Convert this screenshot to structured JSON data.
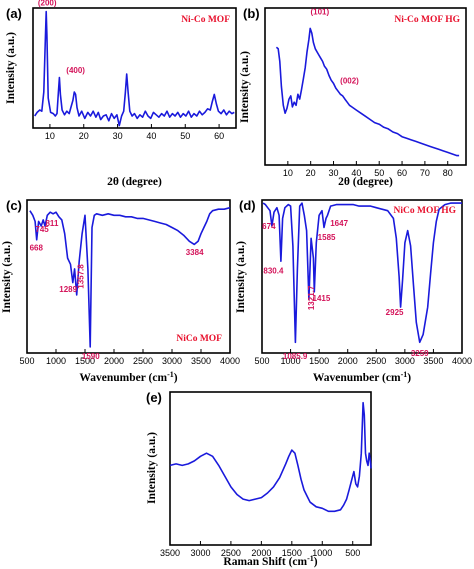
{
  "colors": {
    "line": "#1a1adc",
    "legend": "#e8112d",
    "annotation": "#d4145a"
  },
  "chart_data": [
    {
      "type": "line",
      "panel_label": "(a)",
      "legend": "Ni-Co MOF",
      "xlabel": "2θ (degree)",
      "ylabel": "Intensity (a.u.)",
      "xlim": [
        5,
        65
      ],
      "ylim": [
        0,
        1
      ],
      "xticks": [
        {
          "v": 10,
          "t": "10"
        },
        {
          "v": 20,
          "t": "20"
        },
        {
          "v": 30,
          "t": "30"
        },
        {
          "v": 40,
          "t": "40"
        },
        {
          "v": 50,
          "t": "50"
        },
        {
          "v": 60,
          "t": "60"
        }
      ],
      "series": [
        {
          "x": [
            5.5,
            6.2,
            7,
            7.6,
            8.2,
            8.6,
            8.9,
            9.1,
            9.5,
            10.2,
            11,
            11.6,
            12.1,
            12.5,
            12.8,
            13.1,
            13.6,
            14.3,
            15,
            15.7,
            16.3,
            16.8,
            17.2,
            17.6,
            18,
            18.6,
            19.4,
            20.3,
            21.2,
            22,
            22.8,
            23.6,
            24.3,
            25,
            25.8,
            26.6,
            27.4,
            28.2,
            29,
            29.8,
            30.5,
            31.2,
            31.8,
            32.3,
            32.7,
            33.1,
            33.6,
            34.3,
            35,
            35.8,
            36.6,
            37.4,
            38.2,
            39,
            39.8,
            40.6,
            41.4,
            42.2,
            43,
            43.8,
            44.6,
            45.4,
            46.2,
            47,
            47.8,
            48.6,
            49.4,
            50.2,
            51,
            51.8,
            52.6,
            53.4,
            54.2,
            55,
            55.8,
            56.6,
            57.4,
            58,
            58.6,
            59.2,
            59.8,
            60.6,
            61.4,
            62.2,
            63,
            63.8,
            64.5
          ],
          "y": [
            0.1,
            0.13,
            0.15,
            0.14,
            0.3,
            0.7,
            0.97,
            0.78,
            0.25,
            0.13,
            0.12,
            0.1,
            0.12,
            0.3,
            0.42,
            0.28,
            0.15,
            0.11,
            0.14,
            0.12,
            0.18,
            0.23,
            0.3,
            0.28,
            0.17,
            0.1,
            0.14,
            0.08,
            0.13,
            0.1,
            0.14,
            0.09,
            0.13,
            0.07,
            0.1,
            0.11,
            0.06,
            0.12,
            0.08,
            0.11,
            0.02,
            0.1,
            0.14,
            0.3,
            0.45,
            0.3,
            0.14,
            0.1,
            0.12,
            0.08,
            0.11,
            0.09,
            0.14,
            0.1,
            0.08,
            0.13,
            0.11,
            0.09,
            0.12,
            0.1,
            0.14,
            0.09,
            0.12,
            0.1,
            0.13,
            0.09,
            0.12,
            0.1,
            0.14,
            0.09,
            0.12,
            0.1,
            0.14,
            0.11,
            0.13,
            0.16,
            0.15,
            0.22,
            0.28,
            0.2,
            0.14,
            0.12,
            0.15,
            0.11,
            0.14,
            0.12,
            0.13
          ]
        }
      ],
      "annotations": [
        {
          "text": "(200)",
          "x": 9.2,
          "y": 1.02
        },
        {
          "text": "(400)",
          "x": 17.6,
          "y": 0.46
        }
      ]
    },
    {
      "type": "line",
      "panel_label": "(b)",
      "legend": "Ni-Co MOF HG",
      "xlabel": "2θ (degree)",
      "ylabel": "Intensity (a.u.)",
      "xlim": [
        0,
        88
      ],
      "ylim": [
        0,
        1
      ],
      "xticks": [
        {
          "v": 10,
          "t": "10"
        },
        {
          "v": 20,
          "t": "20"
        },
        {
          "v": 30,
          "t": "30"
        },
        {
          "v": 40,
          "t": "40"
        },
        {
          "v": 50,
          "t": "50"
        },
        {
          "v": 60,
          "t": "60"
        },
        {
          "v": 70,
          "t": "70"
        },
        {
          "v": 80,
          "t": "80"
        }
      ],
      "series": [
        {
          "x": [
            5,
            5.8,
            6.5,
            7.2,
            8,
            8.8,
            9.6,
            10.5,
            11.3,
            12,
            12.8,
            13.6,
            14.4,
            15.2,
            16,
            16.8,
            17.6,
            18.4,
            19.2,
            19.8,
            20.5,
            21.2,
            22,
            22.8,
            23.6,
            24.4,
            25.2,
            26,
            27,
            28,
            29,
            30,
            31,
            32,
            33,
            34,
            35,
            36,
            37,
            38,
            40,
            42,
            44,
            46,
            48,
            50,
            52,
            54,
            56,
            58,
            60,
            62,
            64,
            66,
            68,
            70,
            72,
            74,
            76,
            78,
            80,
            82,
            84,
            85
          ],
          "y": [
            0.75,
            0.74,
            0.66,
            0.5,
            0.38,
            0.33,
            0.36,
            0.42,
            0.44,
            0.37,
            0.4,
            0.38,
            0.45,
            0.42,
            0.48,
            0.55,
            0.62,
            0.72,
            0.8,
            0.87,
            0.84,
            0.78,
            0.74,
            0.72,
            0.7,
            0.68,
            0.66,
            0.63,
            0.61,
            0.57,
            0.54,
            0.52,
            0.49,
            0.47,
            0.45,
            0.44,
            0.42,
            0.4,
            0.38,
            0.37,
            0.35,
            0.33,
            0.31,
            0.29,
            0.27,
            0.26,
            0.24,
            0.23,
            0.21,
            0.2,
            0.18,
            0.17,
            0.16,
            0.15,
            0.14,
            0.13,
            0.12,
            0.11,
            0.1,
            0.09,
            0.08,
            0.07,
            0.06,
            0.06
          ]
        }
      ],
      "annotations": [
        {
          "text": "(101)",
          "x": 24,
          "y": 0.96
        },
        {
          "text": "(002)",
          "x": 37,
          "y": 0.52
        }
      ]
    },
    {
      "type": "line",
      "panel_label": "(c)",
      "legend": "NiCo MOF",
      "xlabel": "Wavenumber (cm",
      "xlabel_sup": "-1",
      "xlabel_end": ")",
      "ylabel": "Intensity (a.u.)",
      "xlim": [
        500,
        4000
      ],
      "ylim": [
        0,
        1
      ],
      "xticks": [
        {
          "v": 500,
          "t": "500"
        },
        {
          "v": 1000,
          "t": "1000"
        },
        {
          "v": 1500,
          "t": "1500"
        },
        {
          "v": 2000,
          "t": "2000"
        },
        {
          "v": 2500,
          "t": "2500"
        },
        {
          "v": 3000,
          "t": "3000"
        },
        {
          "v": 3500,
          "t": "3500"
        },
        {
          "v": 4000,
          "t": "4000"
        }
      ],
      "series": [
        {
          "x": [
            550,
            600,
            640,
            668,
            700,
            745,
            780,
            811,
            850,
            900,
            950,
            1000,
            1050,
            1100,
            1150,
            1200,
            1250,
            1289,
            1320,
            1357,
            1400,
            1450,
            1500,
            1550,
            1590,
            1620,
            1660,
            1700,
            1800,
            1900,
            2000,
            2100,
            2200,
            2300,
            2400,
            2500,
            2600,
            2700,
            2800,
            2900,
            3000,
            3100,
            3200,
            3300,
            3384,
            3450,
            3500,
            3550,
            3600,
            3650,
            3700,
            3800,
            3900,
            4000
          ],
          "y": [
            0.93,
            0.9,
            0.86,
            0.74,
            0.86,
            0.83,
            0.87,
            0.83,
            0.9,
            0.92,
            0.91,
            0.92,
            0.89,
            0.87,
            0.78,
            0.62,
            0.58,
            0.46,
            0.55,
            0.38,
            0.6,
            0.78,
            0.9,
            0.55,
            0.04,
            0.82,
            0.9,
            0.91,
            0.9,
            0.91,
            0.9,
            0.9,
            0.89,
            0.89,
            0.88,
            0.88,
            0.87,
            0.86,
            0.85,
            0.84,
            0.82,
            0.8,
            0.77,
            0.73,
            0.71,
            0.73,
            0.78,
            0.82,
            0.86,
            0.91,
            0.93,
            0.94,
            0.94,
            0.95
          ]
        }
      ],
      "annotations": [
        {
          "text": "668",
          "x": 660,
          "y": 0.67
        },
        {
          "text": "745",
          "x": 760,
          "y": 0.79
        },
        {
          "text": "811",
          "x": 930,
          "y": 0.83
        },
        {
          "text": "1289",
          "x": 1210,
          "y": 0.4
        },
        {
          "text": "1357.8",
          "x": 1470,
          "y": 0.5,
          "rotate": -90
        },
        {
          "text": "1590",
          "x": 1600,
          "y": -0.04
        },
        {
          "text": "3384",
          "x": 3390,
          "y": 0.64
        }
      ]
    },
    {
      "type": "line",
      "panel_label": "(d)",
      "legend": "NiCo MOF HG",
      "xlabel": "Wavenumber (cm",
      "xlabel_sup": "-1",
      "xlabel_end": ")",
      "ylabel": "Intensity (a.u.)",
      "xlim": [
        500,
        4000
      ],
      "ylim": [
        0,
        1
      ],
      "xticks": [
        {
          "v": 500,
          "t": "500"
        },
        {
          "v": 1000,
          "t": "1000"
        },
        {
          "v": 1500,
          "t": "1500"
        },
        {
          "v": 2000,
          "t": "2000"
        },
        {
          "v": 2500,
          "t": "2500"
        },
        {
          "v": 3000,
          "t": "3000"
        },
        {
          "v": 3500,
          "t": "3500"
        },
        {
          "v": 4000,
          "t": "4000"
        }
      ],
      "series": [
        {
          "x": [
            520,
            560,
            600,
            640,
            674,
            710,
            760,
            800,
            830,
            860,
            900,
            960,
            1000,
            1040,
            1085,
            1120,
            1160,
            1200,
            1240,
            1280,
            1321,
            1360,
            1400,
            1415,
            1450,
            1500,
            1550,
            1585,
            1620,
            1647,
            1700,
            1800,
            1900,
            2000,
            2100,
            2200,
            2300,
            2400,
            2500,
            2600,
            2700,
            2800,
            2850,
            2900,
            2925,
            2960,
            3000,
            3050,
            3100,
            3150,
            3200,
            3259,
            3320,
            3400,
            3450,
            3500,
            3550,
            3600,
            3700,
            3800,
            3900,
            4000
          ],
          "y": [
            0.98,
            0.97,
            0.95,
            0.93,
            0.83,
            0.92,
            0.95,
            0.9,
            0.6,
            0.88,
            0.95,
            0.97,
            0.96,
            0.7,
            0.07,
            0.55,
            0.96,
            0.98,
            0.9,
            0.8,
            0.35,
            0.75,
            0.62,
            0.4,
            0.72,
            0.9,
            0.93,
            0.82,
            0.88,
            0.9,
            0.96,
            0.97,
            0.97,
            0.97,
            0.97,
            0.96,
            0.96,
            0.96,
            0.95,
            0.94,
            0.93,
            0.88,
            0.75,
            0.5,
            0.3,
            0.48,
            0.72,
            0.8,
            0.7,
            0.45,
            0.2,
            0.07,
            0.12,
            0.3,
            0.52,
            0.72,
            0.86,
            0.94,
            0.97,
            0.98,
            0.98,
            0.98
          ]
        }
      ],
      "annotations": [
        {
          "text": "674",
          "x": 620,
          "y": 0.81
        },
        {
          "text": "830.4",
          "x": 700,
          "y": 0.52
        },
        {
          "text": "1085.9",
          "x": 1080,
          "y": -0.04
        },
        {
          "text": "1321.7",
          "x": 1410,
          "y": 0.36,
          "rotate": -90
        },
        {
          "text": "1415",
          "x": 1540,
          "y": 0.34
        },
        {
          "text": "1585",
          "x": 1630,
          "y": 0.74
        },
        {
          "text": "1647",
          "x": 1850,
          "y": 0.83
        },
        {
          "text": "2925",
          "x": 2820,
          "y": 0.25
        },
        {
          "text": "3259",
          "x": 3260,
          "y": -0.02
        }
      ]
    },
    {
      "type": "line",
      "panel_label": "(e)",
      "xlabel": "Raman Shift (cm",
      "xlabel_sup": "-1",
      "xlabel_end": ")",
      "ylabel": "Intensity (a.u.)",
      "xlim": [
        3500,
        200
      ],
      "ylim": [
        0,
        1
      ],
      "xticks": [
        {
          "v": 3500,
          "t": "3500"
        },
        {
          "v": 3000,
          "t": "3000"
        },
        {
          "v": 2500,
          "t": "2500"
        },
        {
          "v": 2000,
          "t": "2000"
        },
        {
          "v": 1500,
          "t": "1500"
        },
        {
          "v": 1000,
          "t": "1000"
        },
        {
          "v": 500,
          "t": "500"
        }
      ],
      "series": [
        {
          "x": [
            3500,
            3400,
            3300,
            3200,
            3100,
            3000,
            2900,
            2800,
            2700,
            2600,
            2500,
            2400,
            2300,
            2200,
            2100,
            2000,
            1900,
            1800,
            1700,
            1600,
            1550,
            1500,
            1450,
            1400,
            1350,
            1300,
            1250,
            1200,
            1100,
            1000,
            900,
            800,
            700,
            650,
            600,
            560,
            520,
            480,
            450,
            420,
            390,
            360,
            330,
            310,
            290,
            270,
            250,
            230,
            210,
            200
          ],
          "y": [
            0.52,
            0.53,
            0.52,
            0.53,
            0.55,
            0.58,
            0.6,
            0.58,
            0.52,
            0.45,
            0.38,
            0.33,
            0.3,
            0.29,
            0.3,
            0.31,
            0.34,
            0.38,
            0.44,
            0.53,
            0.58,
            0.62,
            0.6,
            0.52,
            0.43,
            0.36,
            0.32,
            0.28,
            0.25,
            0.24,
            0.22,
            0.22,
            0.23,
            0.26,
            0.3,
            0.36,
            0.42,
            0.48,
            0.4,
            0.38,
            0.45,
            0.6,
            0.93,
            0.85,
            0.6,
            0.55,
            0.52,
            0.6,
            0.55,
            0.5
          ]
        }
      ]
    }
  ]
}
